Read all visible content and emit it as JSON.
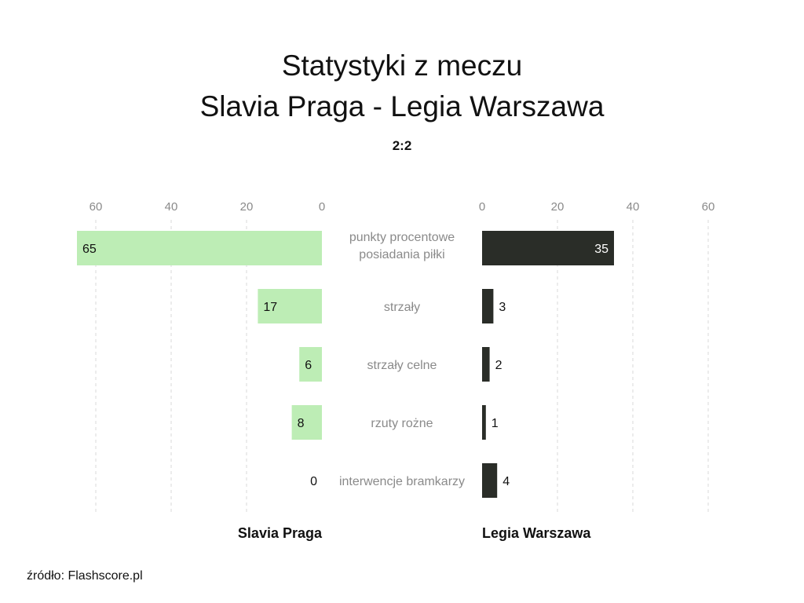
{
  "chart_data": {
    "type": "bar",
    "title": [
      "Statystyki z meczu",
      "Slavia Praga - Legia Warszawa"
    ],
    "subtitle": "2:2",
    "categories": [
      [
        "punkty procentowe",
        "posiadania piłki"
      ],
      [
        "strzały"
      ],
      [
        "strzały celne"
      ],
      [
        "rzuty rożne"
      ],
      [
        "interwencje bramkarzy"
      ]
    ],
    "series": [
      {
        "name": "Slavia Praga",
        "values": [
          65,
          17,
          6,
          8,
          0
        ],
        "color": "#bdedb5"
      },
      {
        "name": "Legia Warszawa",
        "values": [
          35,
          3,
          2,
          1,
          4
        ],
        "color": "#2a2d28"
      }
    ],
    "xticks": [
      0,
      20,
      40,
      60
    ],
    "xlim": [
      0,
      60
    ],
    "grid": true,
    "source": "źródło: Flashscore.pl"
  }
}
